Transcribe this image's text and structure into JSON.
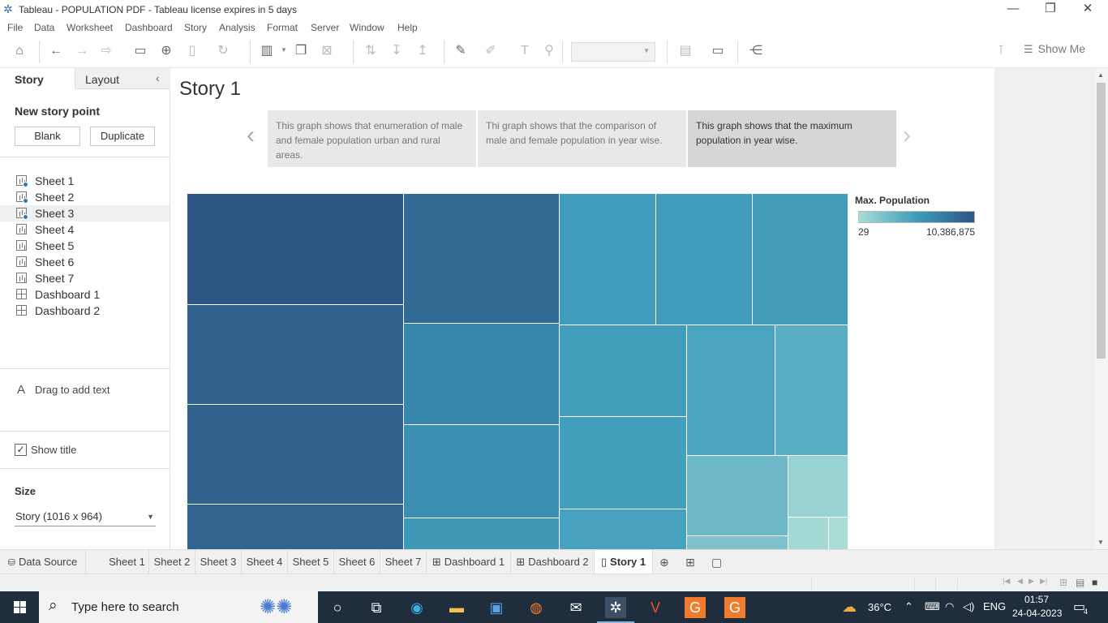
{
  "window": {
    "title": "Tableau - POPULATION PDF - Tableau license expires in 5 days",
    "min": "—",
    "max": "❐",
    "close": "✕"
  },
  "menu": [
    "File",
    "Data",
    "Worksheet",
    "Dashboard",
    "Story",
    "Analysis",
    "Format",
    "Server",
    "Window",
    "Help"
  ],
  "toolbar": {
    "show_me_label": "Show Me",
    "icons": [
      "home-icon",
      "undo-icon",
      "redo-icon",
      "save-icon",
      "new-data-source-icon",
      "refresh-icon",
      "new-worksheet-icon",
      "duplicate-icon",
      "clear-icon",
      "swap-icon",
      "sort-ascending-icon",
      "sort-descending-icon",
      "highlight-icon",
      "attach-icon",
      "text-label-icon",
      "pin-icon",
      "fit-icon",
      "presentation-icon",
      "share-icon"
    ]
  },
  "left_panel": {
    "tabs": {
      "story": "Story",
      "layout": "Layout"
    },
    "new_story_point": "New story point",
    "blank_label": "Blank",
    "duplicate_label": "Duplicate",
    "sheets": [
      {
        "label": "Sheet 1",
        "type": "chart",
        "used": true
      },
      {
        "label": "Sheet 2",
        "type": "chart",
        "used": true
      },
      {
        "label": "Sheet 3",
        "type": "chart",
        "used": true,
        "active": true
      },
      {
        "label": "Sheet 4",
        "type": "chart",
        "used": false
      },
      {
        "label": "Sheet 5",
        "type": "chart",
        "used": false
      },
      {
        "label": "Sheet 6",
        "type": "chart",
        "used": false
      },
      {
        "label": "Sheet 7",
        "type": "chart",
        "used": false
      },
      {
        "label": "Dashboard 1",
        "type": "dashboard",
        "used": false
      },
      {
        "label": "Dashboard 2",
        "type": "dashboard",
        "used": false
      }
    ],
    "drag_text": "Drag to add text",
    "show_title_label": "Show title",
    "show_title_checked": "✓",
    "size_title": "Size",
    "size_value": "Story (1016 x 964)"
  },
  "story": {
    "title": "Story 1",
    "points": [
      {
        "text": "This graph shows that enumeration of male and female population urban and rural areas.",
        "active": false
      },
      {
        "text": "Thi graph shows that the comparison of male and female population in year wise.",
        "active": false
      },
      {
        "text": "This graph shows that the maximum population in year wise.",
        "active": true
      }
    ],
    "legend": {
      "title": "Max. Population",
      "min_label": "29",
      "max_label": "10,386,875",
      "colors": [
        "#a8dcd4",
        "#3f9cba",
        "#2d5684"
      ]
    }
  },
  "chart_data": {
    "type": "heatmap",
    "title": "",
    "measure": "Max. Population",
    "color_range": [
      29,
      10386875
    ]
  },
  "sheet_tabs": [
    "Data Source",
    "Sheet 1",
    "Sheet 2",
    "Sheet 3",
    "Sheet 4",
    "Sheet 5",
    "Sheet 6",
    "Sheet 7",
    "Dashboard 1",
    "Dashboard 2",
    "Story 1"
  ],
  "active_tab": "Story 1",
  "taskbar": {
    "search_placeholder": "Type here to search",
    "temperature": "36°C",
    "language": "ENG",
    "time": "01:57",
    "date": "24-04-2023",
    "notifications": "4"
  }
}
